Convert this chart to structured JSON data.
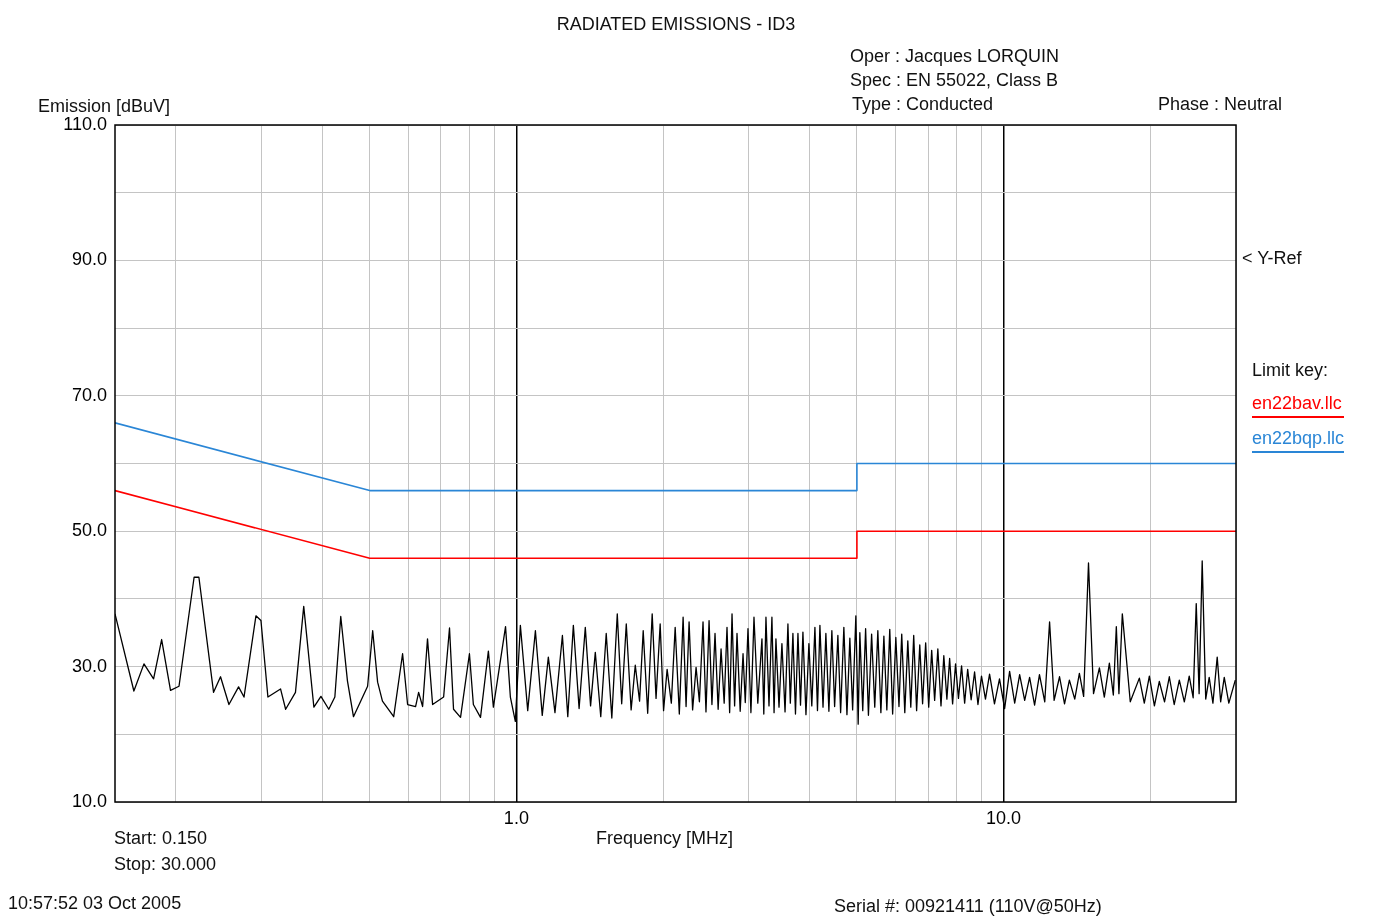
{
  "chart_data": {
    "type": "line",
    "title": "RADIATED EMISSIONS  - ID3",
    "xlabel": "Frequency [MHz]",
    "ylabel": "Emission [dBuV]",
    "legend_title": "Limit key:",
    "annotations": [
      "Oper : Jacques LORQUIN",
      "Spec : EN 55022, Class B",
      "Type : Conducted",
      "Phase : Neutral",
      "< Y-Ref",
      "Start: 0.150",
      "Stop: 30.000",
      "10:57:52  03 Oct 2005",
      "Serial #: 00921411 (110V@50Hz)"
    ],
    "log": "x",
    "grid": true,
    "legend": "right",
    "xlim": [
      0.15,
      30
    ],
    "ylim": [
      10,
      110
    ],
    "xticks": [
      {
        "value": 0.2,
        "label": null
      },
      {
        "value": 0.3,
        "label": null
      },
      {
        "value": 0.4,
        "label": null
      },
      {
        "value": 0.5,
        "label": null
      },
      {
        "value": 0.6,
        "label": null
      },
      {
        "value": 0.7,
        "label": null
      },
      {
        "value": 0.8,
        "label": null
      },
      {
        "value": 0.9,
        "label": null
      },
      {
        "value": 1,
        "label": "1.0"
      },
      {
        "value": 2,
        "label": null
      },
      {
        "value": 3,
        "label": null
      },
      {
        "value": 4,
        "label": null
      },
      {
        "value": 5,
        "label": null
      },
      {
        "value": 6,
        "label": null
      },
      {
        "value": 7,
        "label": null
      },
      {
        "value": 8,
        "label": null
      },
      {
        "value": 9,
        "label": null
      },
      {
        "value": 10,
        "label": "10.0"
      },
      {
        "value": 20,
        "label": null
      },
      {
        "value": 30,
        "label": null
      }
    ],
    "yticks": [
      {
        "value": 10,
        "label": "10.0"
      },
      {
        "value": 20,
        "label": null
      },
      {
        "value": 30,
        "label": "30.0"
      },
      {
        "value": 40,
        "label": null
      },
      {
        "value": 50,
        "label": "50.0"
      },
      {
        "value": 60,
        "label": null
      },
      {
        "value": 70,
        "label": "70.0"
      },
      {
        "value": 80,
        "label": null
      },
      {
        "value": 90,
        "label": "90.0"
      },
      {
        "value": 100,
        "label": null
      },
      {
        "value": 110,
        "label": "110.0"
      }
    ],
    "series": [
      {
        "color": "#000000",
        "x": [
          0.15,
          0.164,
          0.172,
          0.18,
          0.187,
          0.195,
          0.203,
          0.218,
          0.223,
          0.239,
          0.247,
          0.257,
          0.269,
          0.276,
          0.292,
          0.299,
          0.309,
          0.328,
          0.336,
          0.352,
          0.366,
          0.384,
          0.397,
          0.412,
          0.424,
          0.436,
          0.45,
          0.463,
          0.495,
          0.507,
          0.519,
          0.531,
          0.56,
          0.584,
          0.598,
          0.621,
          0.63,
          0.642,
          0.657,
          0.673,
          0.709,
          0.729,
          0.743,
          0.768,
          0.801,
          0.816,
          0.844,
          0.876,
          0.897,
          0.95,
          0.972,
          0.995,
          1.019,
          1.055,
          1.094,
          1.13,
          1.163,
          1.2,
          1.243,
          1.275,
          1.309,
          1.345,
          1.385,
          1.42,
          1.452,
          1.49,
          1.529,
          1.57,
          1.611,
          1.645,
          1.681,
          1.72,
          1.754,
          1.79,
          1.821,
          1.86,
          1.9,
          1.935,
          1.973,
          2.005,
          2.039,
          2.08,
          2.118,
          2.16,
          2.199,
          2.23,
          2.262,
          2.3,
          2.338,
          2.375,
          2.416,
          2.45,
          2.486,
          2.52,
          2.557,
          2.595,
          2.631,
          2.67,
          2.706,
          2.74,
          2.771,
          2.805,
          2.837,
          2.88,
          2.919,
          2.95,
          2.988,
          3.03,
          3.074,
          3.13,
          3.192,
          3.22,
          3.253,
          3.3,
          3.346,
          3.38,
          3.41,
          3.46,
          3.508,
          3.56,
          3.609,
          3.65,
          3.695,
          3.74,
          3.784,
          3.83,
          3.874,
          3.93,
          3.985,
          4.04,
          4.1,
          4.15,
          4.198,
          4.26,
          4.318,
          4.38,
          4.442,
          4.5,
          4.57,
          4.63,
          4.701,
          4.77,
          4.836,
          4.9,
          4.975,
          5.03,
          5.07,
          5.14,
          5.21,
          5.28,
          5.36,
          5.44,
          5.52,
          5.6,
          5.68,
          5.76,
          5.84,
          5.92,
          6.01,
          6.1,
          6.18,
          6.27,
          6.36,
          6.45,
          6.54,
          6.63,
          6.73,
          6.82,
          6.92,
          7.02,
          7.12,
          7.22,
          7.33,
          7.44,
          7.54,
          7.65,
          7.75,
          7.86,
          7.97,
          8.08,
          8.2,
          8.32,
          8.44,
          8.58,
          8.72,
          8.86,
          9.01,
          9.18,
          9.36,
          9.58,
          9.81,
          10.05,
          10.29,
          10.54,
          10.79,
          11.05,
          11.31,
          11.58,
          11.85,
          12.15,
          12.43,
          12.7,
          13.03,
          13.34,
          13.65,
          14,
          14.31,
          14.6,
          14.94,
          15.3,
          15.73,
          16.1,
          16.49,
          16.8,
          17.04,
          17.25,
          17.53,
          18.2,
          19,
          19.45,
          19.92,
          20.4,
          20.88,
          21.4,
          21.89,
          22.4,
          22.95,
          23.5,
          24.05,
          24.5,
          24.86,
          25.2,
          25.57,
          26,
          26.43,
          26.9,
          27.45,
          27.9,
          28.38,
          29,
          29.9
        ],
        "values": [
          37.8,
          26.4,
          30.4,
          28.2,
          34,
          26.5,
          27.1,
          43.2,
          43.2,
          26.2,
          28.5,
          24.4,
          27,
          25.5,
          37.5,
          36.8,
          25.5,
          26.7,
          23.7,
          26.2,
          38.9,
          24,
          25.6,
          23.7,
          25.5,
          37.4,
          27.9,
          22.6,
          27.1,
          35.3,
          27.7,
          24.9,
          22.6,
          31.9,
          24.4,
          24.1,
          26.2,
          24.1,
          34.1,
          24.4,
          25.5,
          35.7,
          23.7,
          22.5,
          31.9,
          24.4,
          22.5,
          32.3,
          24,
          35.9,
          25.5,
          21.9,
          36.1,
          23.5,
          35.3,
          22.8,
          31.4,
          23.2,
          34.6,
          22.6,
          36.1,
          23.8,
          35.8,
          24.2,
          32.1,
          22.6,
          34.9,
          22.4,
          37.8,
          24.5,
          36.3,
          23.6,
          30.2,
          24.9,
          35.3,
          23.1,
          37.8,
          25.3,
          36.3,
          23.5,
          29.6,
          24.6,
          35.8,
          23,
          37.3,
          24.1,
          36.6,
          23.6,
          29.9,
          24.8,
          36.6,
          23.3,
          36.8,
          24.4,
          34.9,
          23.7,
          32.6,
          24.6,
          35.8,
          23.2,
          37.8,
          24.2,
          34.9,
          23.4,
          31.9,
          24.7,
          35.6,
          23.2,
          37.3,
          24.6,
          34.1,
          23,
          37.3,
          24.2,
          37.3,
          23.2,
          34.1,
          24,
          33.4,
          23.3,
          36.3,
          24.6,
          34.9,
          23,
          34.9,
          24.3,
          35.1,
          22.9,
          33.4,
          24.2,
          35.8,
          23.5,
          36.1,
          24,
          34.9,
          23.4,
          35.3,
          24.1,
          34.6,
          23.2,
          35.8,
          22.9,
          34.2,
          23.6,
          37.5,
          21.5,
          35,
          23.5,
          35.6,
          22.8,
          34.8,
          24,
          35.3,
          23.2,
          34.5,
          23.6,
          35.5,
          23,
          34.3,
          24.1,
          34.8,
          23.2,
          33.8,
          24,
          34.6,
          23.5,
          33.2,
          24.5,
          33.5,
          24,
          32.4,
          25,
          32.6,
          24.2,
          31.6,
          25.2,
          31.2,
          24.5,
          30.4,
          25.3,
          30.1,
          24.6,
          29.6,
          25.1,
          29.2,
          24.4,
          28.6,
          25.2,
          28.9,
          24.5,
          28.2,
          23.8,
          29.3,
          24.6,
          28.8,
          25,
          28.4,
          24.3,
          28.8,
          24.8,
          36.6,
          25,
          28.5,
          24.5,
          28,
          25.2,
          29,
          25.6,
          45.3,
          26,
          29.8,
          25.5,
          30.5,
          25.8,
          35.9,
          26,
          37.8,
          24.8,
          28.3,
          24.6,
          28.6,
          24.2,
          27.8,
          24.8,
          28.5,
          24.4,
          28,
          24.8,
          28.6,
          25.4,
          39.3,
          26,
          45.6,
          25.2,
          28.4,
          24.6,
          31.4,
          24.8,
          28.4,
          24.6,
          28
        ]
      },
      {
        "name": "en22bav.llc",
        "color": "#ff0000",
        "x": [
          0.15,
          0.5,
          5,
          5,
          30
        ],
        "values": [
          56,
          46,
          46,
          50,
          50
        ]
      },
      {
        "name": "en22bqp.llc",
        "color": "#2a86d6",
        "x": [
          0.15,
          0.5,
          5,
          5,
          30
        ],
        "values": [
          66,
          56,
          56,
          60,
          60
        ]
      }
    ]
  }
}
